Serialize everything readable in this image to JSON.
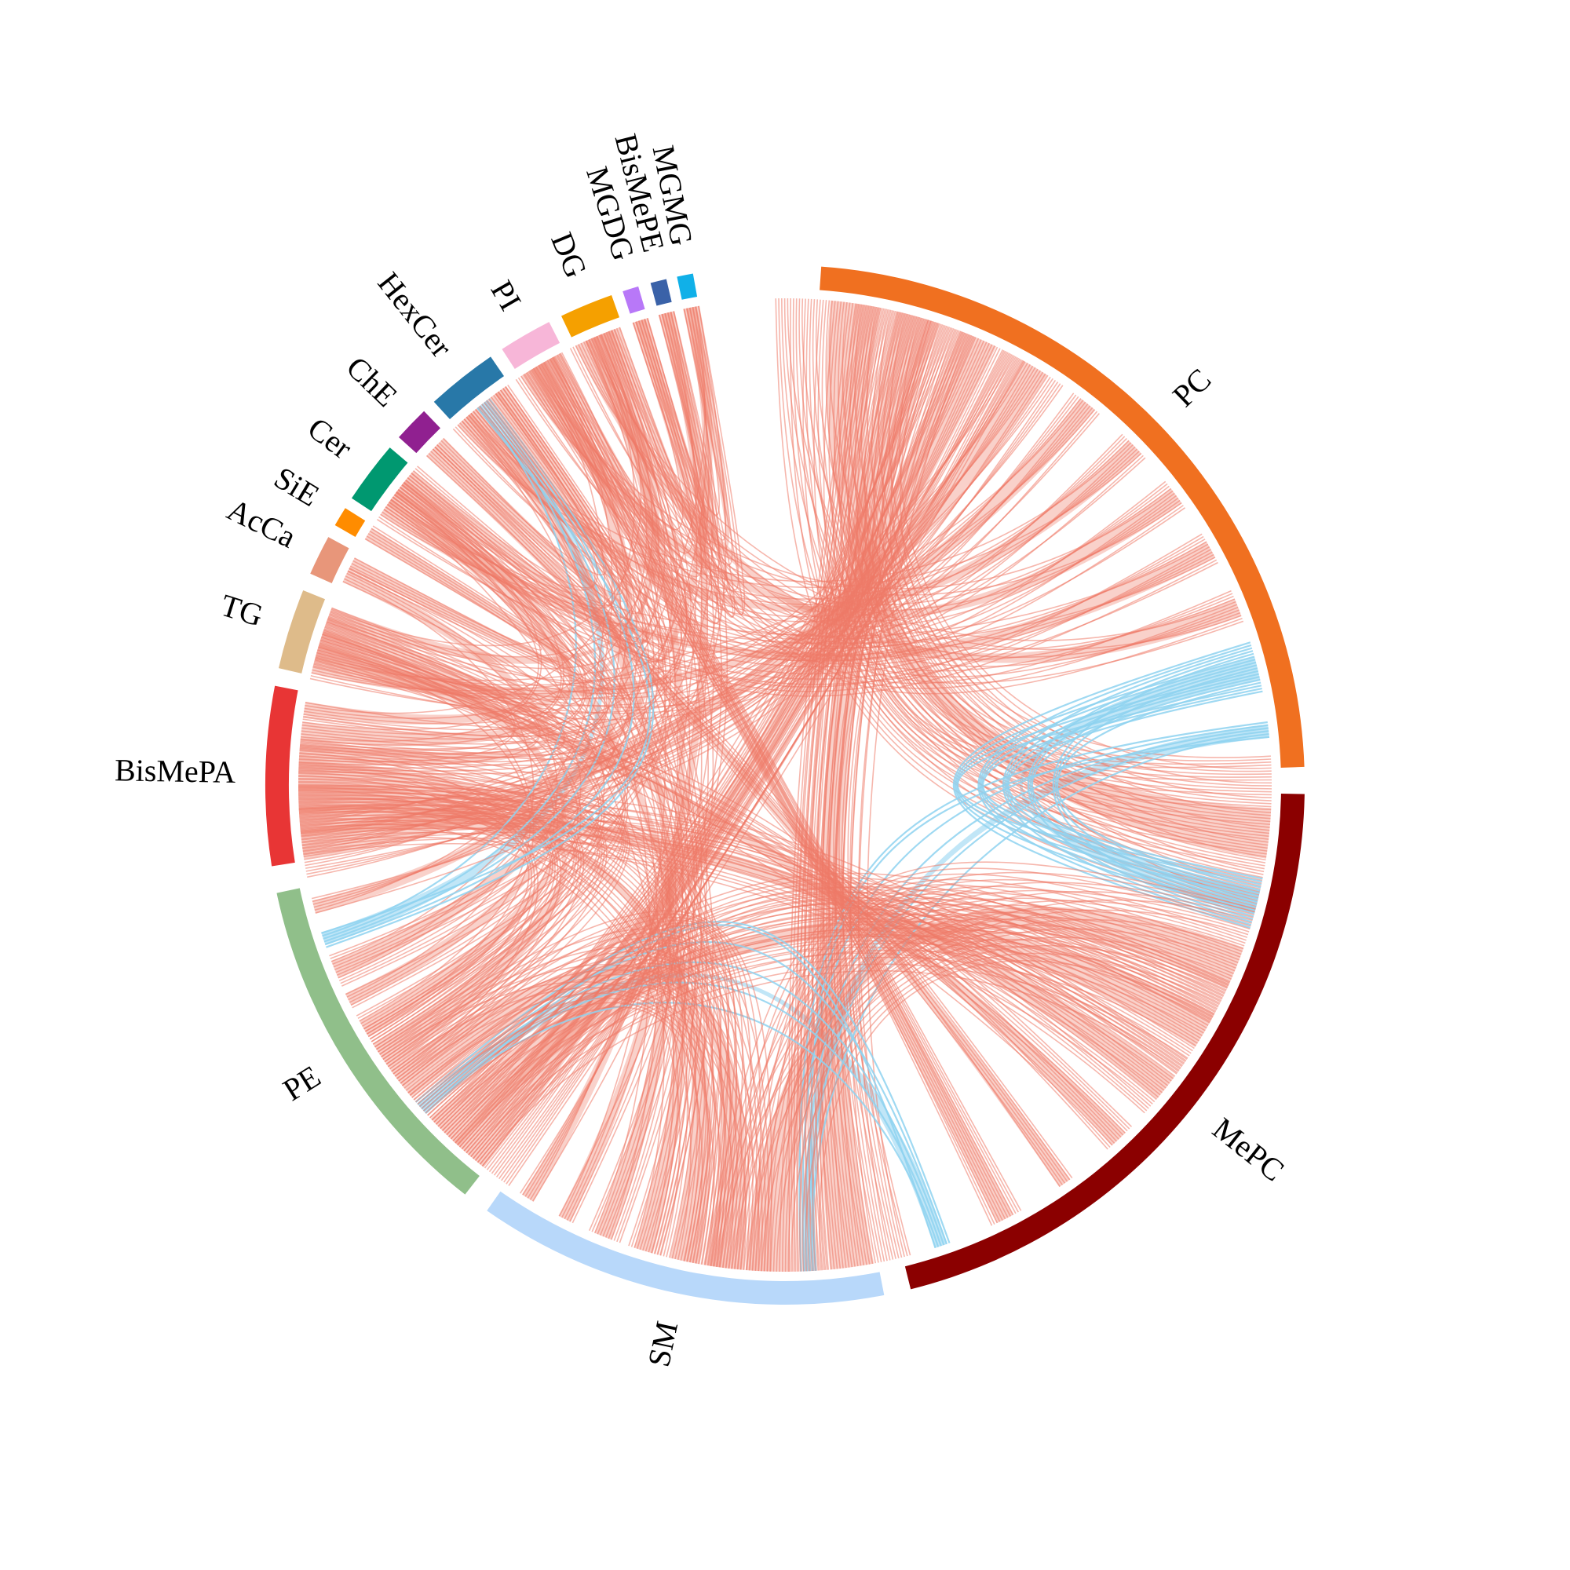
{
  "chart_data": {
    "type": "chord",
    "sectors": [
      {
        "name": "PC",
        "label": "PC",
        "color": "#F07020",
        "start_deg": 4,
        "end_deg": 88
      },
      {
        "name": "MePC",
        "label": "MePC",
        "color": "#8B0000",
        "start_deg": 91,
        "end_deg": 166
      },
      {
        "name": "SM",
        "label": "SM",
        "color": "#B8D8FA",
        "start_deg": 169,
        "end_deg": 215
      },
      {
        "name": "PE",
        "label": "PE",
        "color": "#90BF8A",
        "start_deg": 218,
        "end_deg": 258
      },
      {
        "name": "BisMePA",
        "label": "BisMePA",
        "color": "#E83535",
        "start_deg": 261,
        "end_deg": 281
      },
      {
        "name": "TG",
        "label": "TG",
        "color": "#DEBB8A",
        "start_deg": 283,
        "end_deg": 292
      },
      {
        "name": "AcCa",
        "label": "AcCa",
        "color": "#E8967A",
        "start_deg": 294,
        "end_deg": 298.5
      },
      {
        "name": "SiE",
        "label": "SiE",
        "color": "#FF8C00",
        "start_deg": 300,
        "end_deg": 302.2
      },
      {
        "name": "Cer",
        "label": "Cer",
        "color": "#009870",
        "start_deg": 303.5,
        "end_deg": 310.5
      },
      {
        "name": "ChE",
        "label": "ChE",
        "color": "#902090",
        "start_deg": 312,
        "end_deg": 316
      },
      {
        "name": "HexCer",
        "label": "HexCer",
        "color": "#2878A8",
        "start_deg": 317.5,
        "end_deg": 325.5
      },
      {
        "name": "PI",
        "label": "PI",
        "color": "#F7B6D8",
        "start_deg": 327,
        "end_deg": 333
      },
      {
        "name": "DG",
        "label": "DG",
        "color": "#F5A000",
        "start_deg": 334.5,
        "end_deg": 340.5
      },
      {
        "name": "MGDG",
        "label": "MGDG",
        "color": "#B878F8",
        "start_deg": 341.8,
        "end_deg": 343.6
      },
      {
        "name": "BisMePE",
        "label": "BisMePE",
        "color": "#3A62A8",
        "start_deg": 345,
        "end_deg": 346.8
      },
      {
        "name": "MGMG",
        "label": "MGMG",
        "color": "#10B0E8",
        "start_deg": 348,
        "end_deg": 349.8
      }
    ],
    "link_colors": {
      "positive": "#EF7A68",
      "negative": "#8ED2F0"
    },
    "links": [
      {
        "from": "PC",
        "to": "MePC",
        "sign": "positive",
        "weight": 9
      },
      {
        "from": "PC",
        "to": "SM",
        "sign": "positive",
        "weight": 7
      },
      {
        "from": "PC",
        "to": "PE",
        "sign": "positive",
        "weight": 6
      },
      {
        "from": "PC",
        "to": "BisMePA",
        "sign": "positive",
        "weight": 4
      },
      {
        "from": "PC",
        "to": "TG",
        "sign": "positive",
        "weight": 2
      },
      {
        "from": "PC",
        "to": "HexCer",
        "sign": "positive",
        "weight": 2
      },
      {
        "from": "PC",
        "to": "PI",
        "sign": "positive",
        "weight": 2
      },
      {
        "from": "PC",
        "to": "Cer",
        "sign": "positive",
        "weight": 2
      },
      {
        "from": "PC",
        "to": "DG",
        "sign": "positive",
        "weight": 2
      },
      {
        "from": "PC",
        "to": "MePC",
        "sign": "negative",
        "weight": 3
      },
      {
        "from": "PC",
        "to": "SM",
        "sign": "negative",
        "weight": 1
      },
      {
        "from": "MePC",
        "to": "SM",
        "sign": "positive",
        "weight": 7
      },
      {
        "from": "MePC",
        "to": "PE",
        "sign": "positive",
        "weight": 6
      },
      {
        "from": "MePC",
        "to": "BisMePA",
        "sign": "positive",
        "weight": 4
      },
      {
        "from": "MePC",
        "to": "TG",
        "sign": "positive",
        "weight": 2
      },
      {
        "from": "MePC",
        "to": "ChE",
        "sign": "positive",
        "weight": 1
      },
      {
        "from": "MePC",
        "to": "PI",
        "sign": "positive",
        "weight": 2
      },
      {
        "from": "MePC",
        "to": "PE",
        "sign": "negative",
        "weight": 1
      },
      {
        "from": "SM",
        "to": "PE",
        "sign": "positive",
        "weight": 5
      },
      {
        "from": "SM",
        "to": "BisMePA",
        "sign": "positive",
        "weight": 4
      },
      {
        "from": "SM",
        "to": "Cer",
        "sign": "positive",
        "weight": 2
      },
      {
        "from": "SM",
        "to": "HexCer",
        "sign": "positive",
        "weight": 2
      },
      {
        "from": "SM",
        "to": "DG",
        "sign": "positive",
        "weight": 1
      },
      {
        "from": "PE",
        "to": "BisMePA",
        "sign": "positive",
        "weight": 4
      },
      {
        "from": "PE",
        "to": "TG",
        "sign": "positive",
        "weight": 2
      },
      {
        "from": "PE",
        "to": "AcCa",
        "sign": "positive",
        "weight": 1
      },
      {
        "from": "PE",
        "to": "PI",
        "sign": "positive",
        "weight": 2
      },
      {
        "from": "PE",
        "to": "HexCer",
        "sign": "negative",
        "weight": 1
      },
      {
        "from": "BisMePA",
        "to": "TG",
        "sign": "positive",
        "weight": 2
      },
      {
        "from": "BisMePA",
        "to": "Cer",
        "sign": "positive",
        "weight": 2
      },
      {
        "from": "BisMePA",
        "to": "DG",
        "sign": "positive",
        "weight": 1
      },
      {
        "from": "TG",
        "to": "DG",
        "sign": "positive",
        "weight": 1
      },
      {
        "from": "AcCa",
        "to": "SiE",
        "sign": "positive",
        "weight": 1
      },
      {
        "from": "Cer",
        "to": "HexCer",
        "sign": "positive",
        "weight": 2
      },
      {
        "from": "ChE",
        "to": "HexCer",
        "sign": "positive",
        "weight": 1
      },
      {
        "from": "PI",
        "to": "MGDG",
        "sign": "positive",
        "weight": 1
      },
      {
        "from": "DG",
        "to": "BisMePE",
        "sign": "positive",
        "weight": 1
      },
      {
        "from": "MGDG",
        "to": "MGMG",
        "sign": "positive",
        "weight": 1
      },
      {
        "from": "BisMePE",
        "to": "SM",
        "sign": "positive",
        "weight": 1
      },
      {
        "from": "MGMG",
        "to": "PE",
        "sign": "positive",
        "weight": 1
      }
    ]
  }
}
